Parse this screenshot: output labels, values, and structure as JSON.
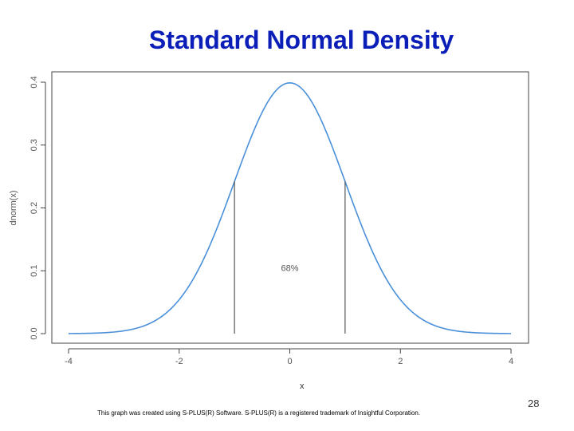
{
  "slide": {
    "title": "Standard Normal Density",
    "page_number": "28",
    "footer": "This graph was created using S-PLUS(R) Software. S-PLUS(R) is a registered trademark of Insightful Corporation."
  },
  "chart_data": {
    "type": "line",
    "title": "",
    "xlabel": "x",
    "ylabel": "dnorm(x)",
    "xlim": [
      -4,
      4
    ],
    "ylim": [
      0,
      0.4
    ],
    "x_ticks": [
      "-4",
      "-2",
      "0",
      "2",
      "4"
    ],
    "y_ticks": [
      "0.0",
      "0.1",
      "0.2",
      "0.3",
      "0.4"
    ],
    "grid": false,
    "series": [
      {
        "function": "dnorm",
        "mean": 0,
        "sd": 1,
        "color": "#4a90d9"
      }
    ],
    "vertical_lines": [
      {
        "x": -1,
        "y": 0.242
      },
      {
        "x": 1,
        "y": 0.242
      }
    ],
    "annotation": {
      "text": "68%",
      "x": 0,
      "y": 0.1
    }
  }
}
